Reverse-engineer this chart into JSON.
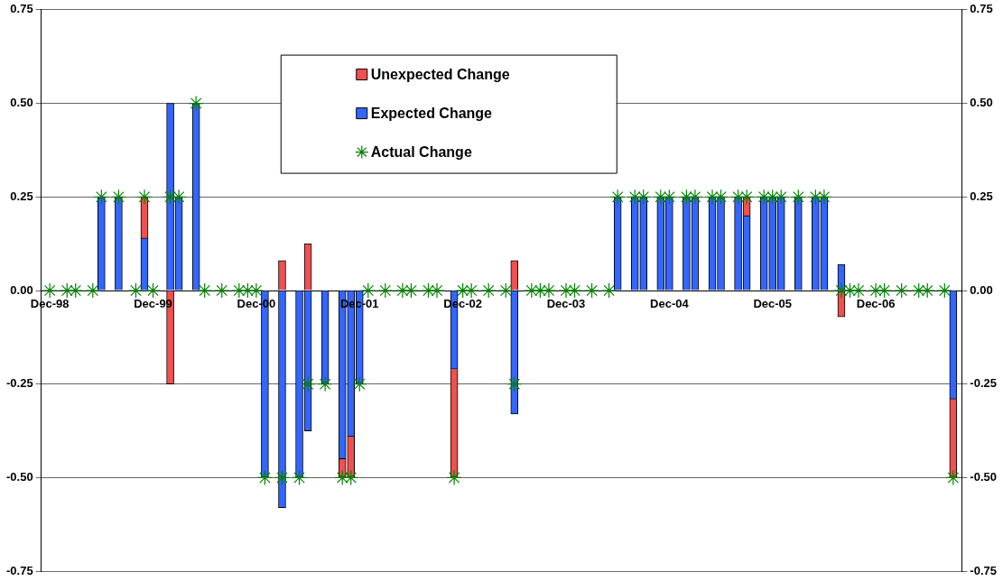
{
  "chart_data": {
    "type": "bar",
    "stacked": true,
    "x": [
      "1998-12",
      "1999-02",
      "1999-03",
      "1999-05",
      "1999-06",
      "1999-08",
      "1999-10",
      "1999-11",
      "1999-12",
      "2000-02",
      "2000-03",
      "2000-05",
      "2000-06",
      "2000-08",
      "2000-10",
      "2000-11",
      "2000-12",
      "2001-01",
      "2001-03",
      "2001-05",
      "2001-06",
      "2001-08",
      "2001-10",
      "2001-11",
      "2001-12",
      "2002-01",
      "2002-03",
      "2002-05",
      "2002-06",
      "2002-08",
      "2002-09",
      "2002-11",
      "2002-12",
      "2003-01",
      "2003-03",
      "2003-05",
      "2003-06",
      "2003-08",
      "2003-09",
      "2003-10",
      "2003-12",
      "2004-01",
      "2004-03",
      "2004-05",
      "2004-06",
      "2004-08",
      "2004-09",
      "2004-11",
      "2004-12",
      "2005-02",
      "2005-03",
      "2005-05",
      "2005-06",
      "2005-08",
      "2005-09",
      "2005-11",
      "2005-12",
      "2006-01",
      "2006-03",
      "2006-05",
      "2006-06",
      "2006-08",
      "2006-09",
      "2006-10",
      "2006-12",
      "2007-01",
      "2007-03",
      "2007-05",
      "2007-06",
      "2007-08",
      "2007-09"
    ],
    "series": [
      {
        "name": "Expected Change",
        "color": "#3366ff",
        "values": [
          null,
          null,
          null,
          null,
          0.25,
          0.25,
          null,
          0.14,
          null,
          0.5,
          0.25,
          0.5,
          null,
          null,
          null,
          null,
          null,
          -0.5,
          -0.58,
          -0.5,
          -0.375,
          -0.25,
          -0.45,
          -0.39,
          -0.25,
          null,
          null,
          null,
          null,
          null,
          null,
          -0.21,
          null,
          null,
          null,
          null,
          -0.33,
          null,
          null,
          null,
          null,
          null,
          null,
          null,
          0.25,
          0.25,
          0.25,
          0.25,
          0.25,
          0.25,
          0.25,
          0.25,
          0.25,
          0.25,
          0.2,
          0.25,
          0.25,
          0.25,
          0.25,
          0.25,
          0.25,
          0.07,
          null,
          null,
          null,
          null,
          null,
          null,
          null,
          null,
          -0.29
        ]
      },
      {
        "name": "Unexpected Change",
        "color": "#f05050",
        "values": [
          null,
          null,
          null,
          null,
          null,
          null,
          null,
          0.11,
          null,
          -0.25,
          null,
          null,
          null,
          null,
          null,
          null,
          null,
          null,
          0.08,
          null,
          0.125,
          null,
          -0.05,
          -0.11,
          null,
          null,
          null,
          null,
          null,
          null,
          null,
          -0.29,
          null,
          null,
          null,
          null,
          0.08,
          null,
          null,
          null,
          null,
          null,
          null,
          null,
          null,
          null,
          null,
          null,
          null,
          null,
          null,
          null,
          null,
          null,
          0.05,
          null,
          null,
          null,
          null,
          null,
          null,
          -0.07,
          null,
          null,
          null,
          null,
          null,
          null,
          null,
          null,
          -0.21
        ]
      },
      {
        "name": "Actual Change",
        "type": "scatter",
        "color": "#008000",
        "values": [
          0,
          0,
          0,
          0,
          0.25,
          0.25,
          0,
          0.25,
          0,
          0.25,
          0.25,
          0.5,
          0,
          0,
          0,
          0,
          0,
          -0.5,
          -0.5,
          -0.5,
          -0.25,
          -0.25,
          -0.5,
          -0.5,
          -0.25,
          0,
          0,
          0,
          0,
          0,
          0,
          -0.5,
          0,
          0,
          0,
          0,
          -0.25,
          0,
          0,
          0,
          0,
          0,
          0,
          0,
          0.25,
          0.25,
          0.25,
          0.25,
          0.25,
          0.25,
          0.25,
          0.25,
          0.25,
          0.25,
          0.25,
          0.25,
          0.25,
          0.25,
          0.25,
          0.25,
          0.25,
          0,
          0,
          0,
          0,
          0,
          0,
          0,
          0,
          0,
          -0.5
        ]
      }
    ],
    "marker": "cross",
    "xlim": [
      "1998-11",
      "2007-10"
    ],
    "xticks": [
      {
        "value": "1998-12",
        "label": "Dec-98"
      },
      {
        "value": "1999-12",
        "label": "Dec-99"
      },
      {
        "value": "2000-12",
        "label": "Dec-00"
      },
      {
        "value": "2001-12",
        "label": "Dec-01"
      },
      {
        "value": "2002-12",
        "label": "Dec-02"
      },
      {
        "value": "2003-12",
        "label": "Dec-03"
      },
      {
        "value": "2004-12",
        "label": "Dec-04"
      },
      {
        "value": "2005-12",
        "label": "Dec-05"
      },
      {
        "value": "2006-12",
        "label": "Dec-06"
      }
    ],
    "ylim": [
      -0.75,
      0.75
    ],
    "yticks": [
      {
        "value": 0.75,
        "label": "0.75"
      },
      {
        "value": 0.5,
        "label": "0.50"
      },
      {
        "value": 0.25,
        "label": "0.25"
      },
      {
        "value": 0,
        "label": "0.00"
      },
      {
        "value": -0.25,
        "label": "-0.25"
      },
      {
        "value": -0.5,
        "label": "-0.50"
      },
      {
        "value": -0.75,
        "label": "-0.75"
      }
    ],
    "y2lim": [
      -0.75,
      0.75
    ],
    "y2ticks": [
      {
        "value": 0.75,
        "label": "0.75"
      },
      {
        "value": 0.5,
        "label": "0.50"
      },
      {
        "value": 0.25,
        "label": "0.25"
      },
      {
        "value": 0,
        "label": "0.00"
      },
      {
        "value": -0.25,
        "label": "-0.25"
      },
      {
        "value": -0.5,
        "label": "-0.50"
      },
      {
        "value": -0.75,
        "label": "-0.75"
      }
    ],
    "grid": "y",
    "legend": "top"
  }
}
